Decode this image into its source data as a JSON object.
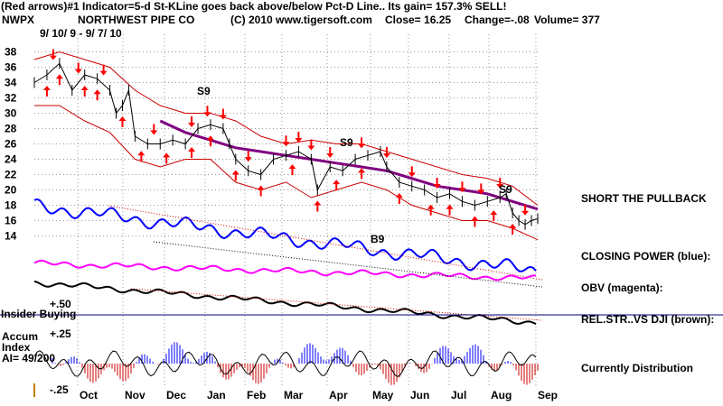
{
  "header": {
    "line1": "(Red arrows)#1 Indicator=5-d St-KLine goes back above/below Pct-D Line.. Its gain= 157.3% SELL!",
    "ticker": "NWPX",
    "company": "NORTHWEST PIPE CO",
    "copyright": "(C) 2010 www.tigersoft.com",
    "close": "Close=  16.25",
    "change": "Change=-.08",
    "volume": "Volume=  377",
    "date_range": "9/ 10/ 9 - 9/ 7/ 10"
  },
  "right_labels": {
    "short": "SHORT THE PULLBACK",
    "closing_power": "CLOSING POWER (blue):",
    "obv": "OBV (magenta):",
    "relstr": "REL.STR..VS DJI (brown):",
    "distribution": "Currently Distribution"
  },
  "left_labels": {
    "insider": "Insider Buying",
    "plus50": "+.50",
    "plus25": "+.25",
    "accum": "Accum",
    "index": "Index",
    "ai": "AI= 49/200",
    "minus25": "-.25"
  },
  "annotations": {
    "s9": "S9",
    "b9": "B9"
  },
  "colors": {
    "price": "#000000",
    "bands": "#cc0000",
    "ma": "#800080",
    "closing_power": "#0000ff",
    "obv": "#ff00ff",
    "relstr": "#000000",
    "insider_line": "#000080",
    "accum_pos": "#0000ff",
    "accum_neg": "#cc0000",
    "arrow": "#ff0000"
  },
  "chart_data": {
    "type": "line",
    "x_labels": [
      "Oct",
      "Nov",
      "Dec",
      "Jan",
      "Feb",
      "Mar",
      "Apr",
      "May",
      "Jun",
      "Jul",
      "Aug",
      "Sep"
    ],
    "y_ticks": [
      38,
      36,
      34,
      32,
      30,
      28,
      26,
      24,
      22,
      20,
      18,
      16,
      14
    ],
    "ylim": [
      13,
      39
    ],
    "price": [
      [
        0,
        34
      ],
      [
        4,
        35
      ],
      [
        8,
        36.5
      ],
      [
        12,
        33
      ],
      [
        16,
        35
      ],
      [
        20,
        34.5
      ],
      [
        24,
        33
      ],
      [
        26,
        30
      ],
      [
        28,
        31
      ],
      [
        30,
        33
      ],
      [
        32,
        27
      ],
      [
        36,
        26
      ],
      [
        40,
        26
      ],
      [
        44,
        26.5
      ],
      [
        48,
        26
      ],
      [
        52,
        28
      ],
      [
        56,
        28.5
      ],
      [
        60,
        28
      ],
      [
        62,
        26
      ],
      [
        64,
        24
      ],
      [
        68,
        22.5
      ],
      [
        72,
        22
      ],
      [
        76,
        24
      ],
      [
        80,
        24.5
      ],
      [
        84,
        25
      ],
      [
        88,
        24
      ],
      [
        90,
        20
      ],
      [
        94,
        23
      ],
      [
        98,
        22.5
      ],
      [
        102,
        24
      ],
      [
        106,
        24.5
      ],
      [
        110,
        25
      ],
      [
        112,
        23
      ],
      [
        116,
        21
      ],
      [
        120,
        20.5
      ],
      [
        124,
        20
      ],
      [
        128,
        19
      ],
      [
        132,
        19.5
      ],
      [
        136,
        18.5
      ],
      [
        140,
        18
      ],
      [
        144,
        18.5
      ],
      [
        148,
        19
      ],
      [
        150,
        19.5
      ],
      [
        152,
        17
      ],
      [
        154,
        16
      ],
      [
        156,
        15.5
      ],
      [
        158,
        16
      ],
      [
        160,
        16.25
      ]
    ],
    "upper_band": [
      [
        0,
        37
      ],
      [
        8,
        38
      ],
      [
        16,
        37
      ],
      [
        24,
        36
      ],
      [
        32,
        33
      ],
      [
        40,
        31
      ],
      [
        48,
        30
      ],
      [
        56,
        30
      ],
      [
        64,
        29
      ],
      [
        72,
        27
      ],
      [
        80,
        26
      ],
      [
        88,
        26.5
      ],
      [
        96,
        26
      ],
      [
        104,
        26
      ],
      [
        112,
        25
      ],
      [
        120,
        24
      ],
      [
        128,
        23
      ],
      [
        136,
        22
      ],
      [
        144,
        21.5
      ],
      [
        152,
        20.5
      ],
      [
        160,
        18
      ]
    ],
    "lower_band": [
      [
        0,
        31
      ],
      [
        8,
        31
      ],
      [
        16,
        29
      ],
      [
        24,
        27.5
      ],
      [
        32,
        24
      ],
      [
        40,
        23
      ],
      [
        48,
        24
      ],
      [
        56,
        24
      ],
      [
        64,
        21
      ],
      [
        72,
        20
      ],
      [
        80,
        21
      ],
      [
        88,
        19
      ],
      [
        96,
        20
      ],
      [
        104,
        21
      ],
      [
        112,
        20
      ],
      [
        120,
        18
      ],
      [
        128,
        17
      ],
      [
        136,
        16
      ],
      [
        144,
        16
      ],
      [
        152,
        15
      ],
      [
        160,
        13.5
      ]
    ],
    "moving_avg": [
      [
        40,
        29
      ],
      [
        48,
        27.5
      ],
      [
        56,
        26.5
      ],
      [
        64,
        25.5
      ],
      [
        72,
        25
      ],
      [
        80,
        24.5
      ],
      [
        88,
        24
      ],
      [
        96,
        23.5
      ],
      [
        104,
        23
      ],
      [
        112,
        22.5
      ],
      [
        120,
        21.5
      ],
      [
        128,
        20.5
      ],
      [
        136,
        20
      ],
      [
        144,
        19.5
      ],
      [
        152,
        18.5
      ],
      [
        160,
        17.5
      ]
    ],
    "sell_arrows": [
      6,
      14,
      22,
      38,
      50,
      55,
      60,
      68,
      80,
      84,
      88,
      94,
      104,
      112,
      120,
      128,
      136,
      142,
      148,
      156
    ],
    "buy_arrows": [
      4,
      8,
      16,
      20,
      28,
      34,
      42,
      50,
      56,
      64,
      72,
      82,
      90,
      96,
      104,
      116,
      126,
      132,
      140,
      146,
      152
    ],
    "x_domain": [
      0,
      160
    ]
  }
}
